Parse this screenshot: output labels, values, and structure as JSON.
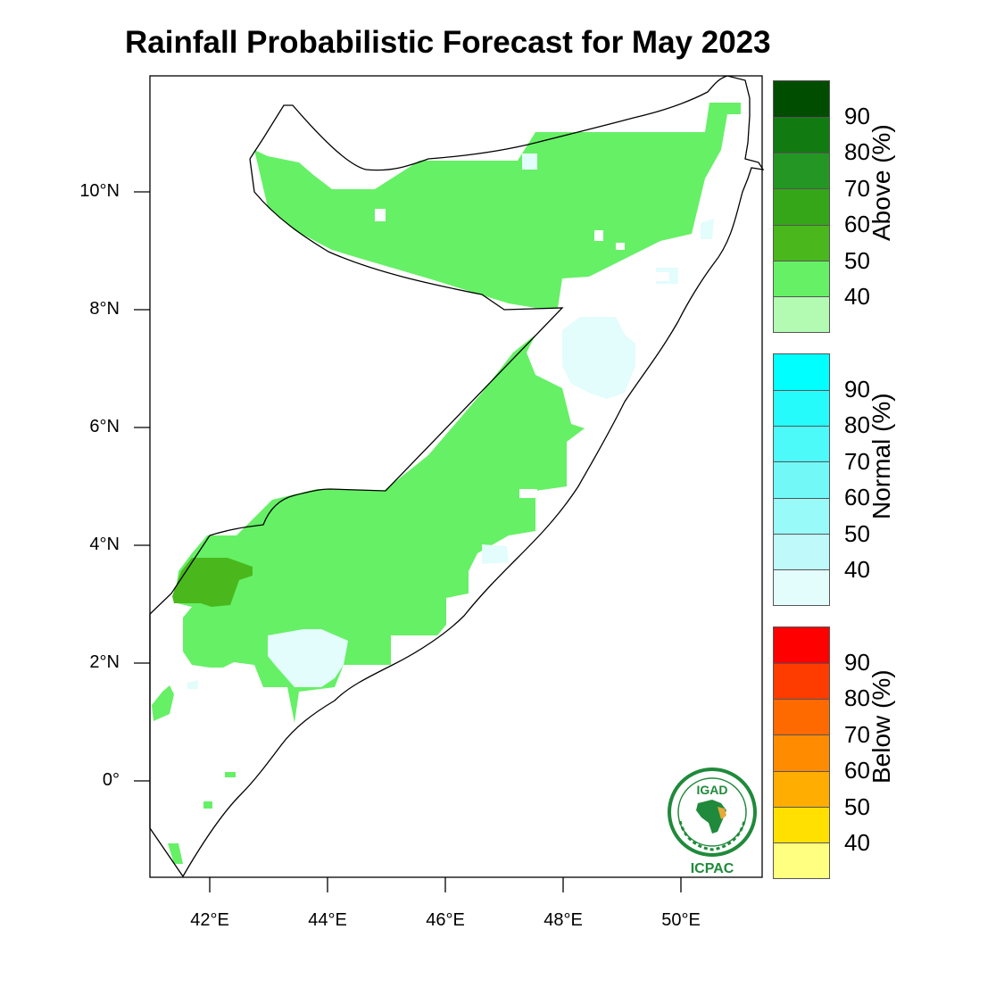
{
  "title": "Rainfall Probabilistic Forecast for May 2023",
  "map": {
    "lat_labels": [
      "10°N",
      "8°N",
      "6°N",
      "4°N",
      "2°N",
      "0°"
    ],
    "lon_labels": [
      "42°E",
      "44°E",
      "46°E",
      "48°E",
      "50°E"
    ],
    "extent": {
      "lon_min": 41.0,
      "lon_max": 51.4,
      "lat_min": -1.7,
      "lat_max": 11.9
    }
  },
  "legend": {
    "above": {
      "title": "Above (%)",
      "levels": [
        "90",
        "80",
        "70",
        "60",
        "50",
        "40"
      ],
      "colors": [
        "#004d00",
        "#117a11",
        "#249624",
        "#34a618",
        "#4ab81c",
        "#66f066",
        "#b3fbb3"
      ]
    },
    "normal": {
      "title": "Normal (%)",
      "levels": [
        "90",
        "80",
        "70",
        "60",
        "50",
        "40"
      ],
      "colors": [
        "#00ffff",
        "#26fbfb",
        "#4dfafa",
        "#73f8f8",
        "#99fafa",
        "#bff9f9",
        "#e3fcfc"
      ]
    },
    "below": {
      "title": "Below (%)",
      "levels": [
        "90",
        "80",
        "70",
        "60",
        "50",
        "40"
      ],
      "colors": [
        "#ff0000",
        "#ff3c00",
        "#ff6a00",
        "#ff8c00",
        "#ffad00",
        "#ffe000",
        "#ffff80"
      ]
    }
  },
  "logo": {
    "top_text": "IGAD",
    "bottom_text": "ICPAC",
    "colors": {
      "green": "#1f8a3b",
      "gold": "#e6a93a"
    }
  }
}
